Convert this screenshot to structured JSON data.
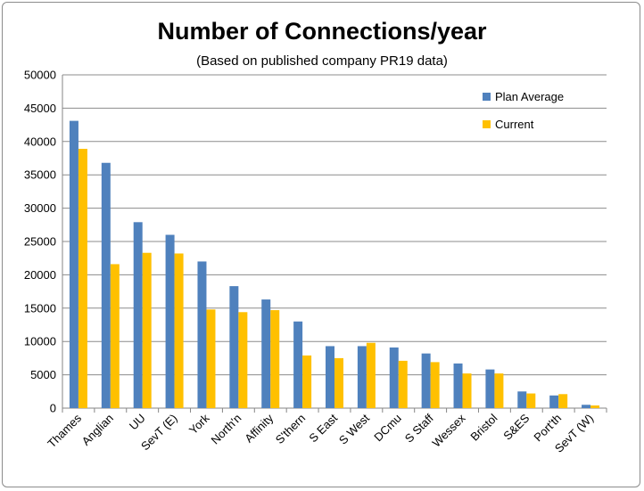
{
  "chart_data": {
    "type": "bar",
    "title": "Number of Connections/year",
    "subtitle": "(Based on published company PR19 data)",
    "categories": [
      "Thames",
      "Anglian",
      "UU",
      "SevT (E)",
      "York",
      "North'n",
      "Affinity",
      "S'thern",
      "S East",
      "S West",
      "DCmu",
      "S Staff",
      "Wessex",
      "Bristol",
      "S&ES",
      "Port'th",
      "SevT (W)"
    ],
    "series": [
      {
        "name": "Plan Average",
        "color": "#4f81bd",
        "values": [
          43100,
          36800,
          27900,
          26000,
          22000,
          18300,
          16300,
          13000,
          9300,
          9300,
          9100,
          8200,
          6700,
          5800,
          2500,
          1900,
          500
        ]
      },
      {
        "name": "Current",
        "color": "#ffc000",
        "values": [
          38900,
          21600,
          23300,
          23200,
          14800,
          14400,
          14700,
          7900,
          7500,
          9800,
          7100,
          6900,
          5200,
          5200,
          2200,
          2100,
          400
        ]
      }
    ],
    "ylim": [
      0,
      50000
    ],
    "yticks": [
      0,
      5000,
      10000,
      15000,
      20000,
      25000,
      30000,
      35000,
      40000,
      45000,
      50000
    ],
    "grid": true,
    "legend": "top-right",
    "xlabel": "",
    "ylabel": ""
  }
}
